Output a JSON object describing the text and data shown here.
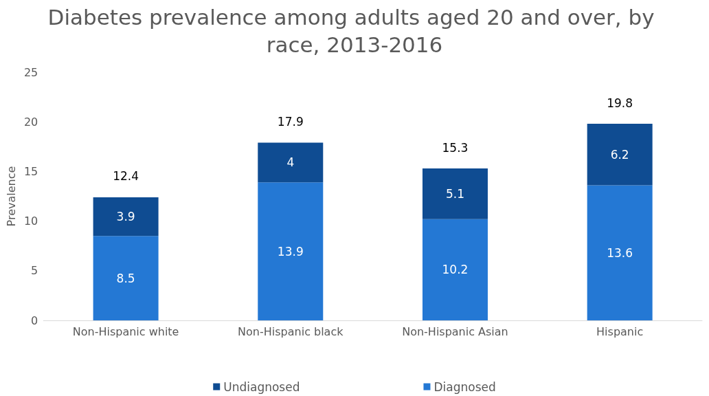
{
  "chart_data": {
    "type": "bar",
    "title": "Diabetes prevalence among adults aged 20 and over, by race, 2013-2016",
    "ylabel": "Prevalence",
    "categories": [
      "Non-Hispanic white",
      "Non-Hispanic black",
      "Non-Hispanic Asian",
      "Hispanic"
    ],
    "series": [
      {
        "name": "Diagnosed",
        "color": "#2478d4",
        "values": [
          8.5,
          13.9,
          10.2,
          13.6
        ]
      },
      {
        "name": "Undiagnosed",
        "color": "#0f4c92",
        "values": [
          3.9,
          4,
          5.1,
          6.2
        ]
      }
    ],
    "stacked": true,
    "data_labels": true,
    "totals": [
      "12.4",
      "17.9",
      "15.3",
      "19.8"
    ],
    "ylim": [
      0,
      25
    ],
    "yticks": [
      0,
      5,
      10,
      15,
      20,
      25
    ],
    "grid": false,
    "legend": "bottom"
  }
}
